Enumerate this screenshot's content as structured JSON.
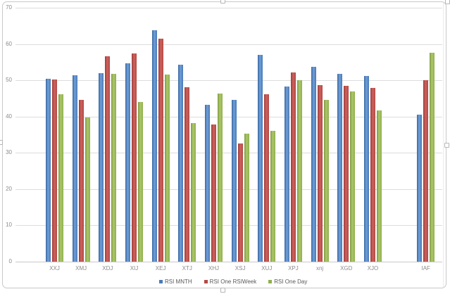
{
  "chart_data": {
    "type": "bar",
    "title": "",
    "xlabel": "",
    "ylabel": "",
    "categories": [
      "XXJ",
      "XMJ",
      "XDJ",
      "XIJ",
      "XEJ",
      "XTJ",
      "XHJ",
      "XSJ",
      "XUJ",
      "XPJ",
      "xnj",
      "XGD",
      "XJO",
      "",
      "IAF"
    ],
    "series": [
      {
        "name": "RSI MNTH",
        "color": "#4a7ab5",
        "color_dark": "#38659e",
        "color_light": "#6f9fd9",
        "values": [
          50.4,
          51.5,
          52.0,
          54.8,
          63.8,
          54.4,
          43.2,
          44.6,
          57.1,
          48.3,
          53.8,
          51.8,
          51.3,
          null,
          40.5
        ]
      },
      {
        "name": "RSI One RSIWeek",
        "color": "#b34a46",
        "color_dark": "#9e3a37",
        "color_light": "#cd615d",
        "values": [
          50.3,
          44.7,
          56.6,
          57.4,
          61.5,
          48.1,
          37.9,
          32.6,
          46.2,
          52.2,
          48.8,
          48.6,
          47.9,
          null,
          50.0
        ]
      },
      {
        "name": "RSI One Day",
        "color": "#8fb04c",
        "color_dark": "#7d9a41",
        "color_light": "#adc76a",
        "values": [
          46.2,
          39.8,
          51.8,
          44.1,
          51.7,
          38.3,
          46.4,
          35.3,
          36.0,
          50.0,
          44.6,
          46.9,
          41.8,
          null,
          57.7
        ]
      }
    ],
    "ylim": [
      0,
      70
    ],
    "yticks": [
      0,
      10,
      20,
      30,
      40,
      50,
      60,
      70
    ],
    "grid": "horizontal",
    "legend_position": "bottom"
  },
  "colors": {
    "gridline": "#dcdcdc",
    "baseline": "#c9c9c9",
    "axis_text": "#8a8a8a",
    "legend_text": "#595959",
    "frame_border": "#c8c8c8",
    "handle_fill": "#ffffff",
    "handle_border": "#b5b5b5"
  }
}
